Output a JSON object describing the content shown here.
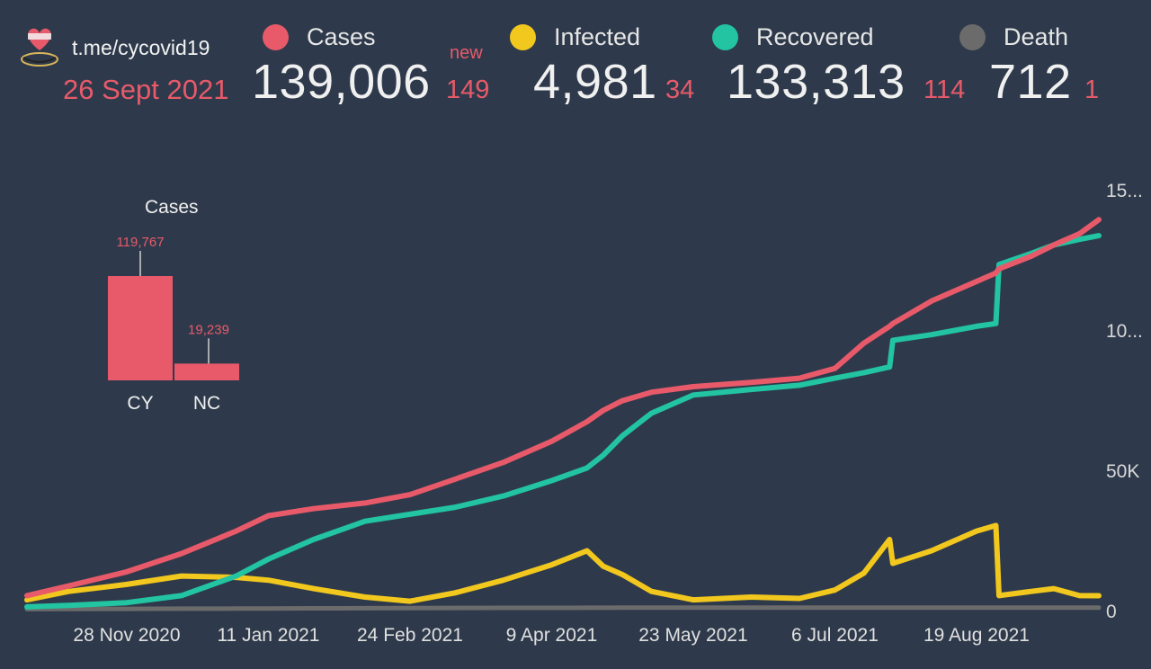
{
  "header": {
    "source": "t.me/cycovid19",
    "date": "26 Sept 2021",
    "new_label": "new",
    "stats": [
      {
        "label": "Cases",
        "value": "139,006",
        "delta": "149",
        "color": "#e85a6a"
      },
      {
        "label": "Infected",
        "value": "4,981",
        "delta": "34",
        "color": "#f2c81e"
      },
      {
        "label": "Recovered",
        "value": "133,313",
        "delta": "114",
        "color": "#22c4a2"
      },
      {
        "label": "Death",
        "value": "712",
        "delta": "1",
        "color": "#6b6b6b"
      }
    ]
  },
  "chart_data": [
    {
      "type": "line",
      "title": "",
      "xlabel": "",
      "ylabel": "",
      "x_tick_labels": [
        "28 Nov 2020",
        "11 Jan 2021",
        "24 Feb 2021",
        "9 Apr 2021",
        "23 May 2021",
        "6 Jul 2021",
        "19 Aug 2021"
      ],
      "y_tick_labels": [
        "0",
        "50K",
        "10...",
        "15..."
      ],
      "ylim": [
        0,
        150000
      ],
      "grid": false,
      "x": [
        "2020-10-28",
        "2020-11-10",
        "2020-11-28",
        "2020-12-15",
        "2021-01-01",
        "2021-01-11",
        "2021-01-25",
        "2021-02-10",
        "2021-02-24",
        "2021-03-10",
        "2021-03-25",
        "2021-04-09",
        "2021-04-20",
        "2021-04-25",
        "2021-05-01",
        "2021-05-10",
        "2021-05-23",
        "2021-06-10",
        "2021-06-25",
        "2021-07-06",
        "2021-07-15",
        "2021-07-23",
        "2021-07-24",
        "2021-08-05",
        "2021-08-19",
        "2021-08-25",
        "2021-08-26",
        "2021-09-05",
        "2021-09-12",
        "2021-09-20",
        "2021-09-26"
      ],
      "series": [
        {
          "name": "Cases",
          "color": "#e85a6a",
          "values": [
            5000,
            8500,
            13500,
            20000,
            28000,
            33500,
            36000,
            38000,
            41000,
            46500,
            52500,
            60000,
            67000,
            71000,
            74500,
            77500,
            79500,
            81000,
            82500,
            86000,
            95000,
            101000,
            102000,
            110000,
            117000,
            120000,
            121500,
            126000,
            130000,
            134000,
            139006
          ]
        },
        {
          "name": "Recovered",
          "color": "#22c4a2",
          "values": [
            1000,
            1500,
            2500,
            5000,
            12000,
            18000,
            25000,
            31500,
            34000,
            36500,
            40500,
            46000,
            50500,
            55000,
            62000,
            70000,
            76500,
            78500,
            80000,
            82500,
            84500,
            86500,
            96000,
            98000,
            101000,
            102000,
            123000,
            127000,
            130000,
            132000,
            133313
          ]
        },
        {
          "name": "Infected",
          "color": "#f2c81e",
          "values": [
            3500,
            6500,
            9000,
            12000,
            11500,
            10500,
            7500,
            4500,
            3000,
            6000,
            10500,
            16000,
            21000,
            15500,
            12500,
            6500,
            3500,
            4500,
            4000,
            7000,
            13000,
            25000,
            16500,
            21000,
            28000,
            30000,
            5000,
            6500,
            7500,
            5000,
            4981
          ]
        },
        {
          "name": "Death",
          "color": "#6b6b6b",
          "values": [
            200,
            250,
            300,
            350,
            400,
            430,
            470,
            520,
            570,
            600,
            630,
            650,
            670,
            680,
            690,
            695,
            700,
            701,
            702,
            703,
            704,
            705,
            706,
            707,
            708,
            709,
            709,
            710,
            711,
            711,
            712
          ]
        }
      ]
    },
    {
      "type": "bar",
      "title": "Cases",
      "categories": [
        "CY",
        "NC"
      ],
      "values": [
        119767,
        19239
      ],
      "value_labels": [
        "119,767",
        "19,239"
      ],
      "color": "#e85a6a"
    }
  ]
}
